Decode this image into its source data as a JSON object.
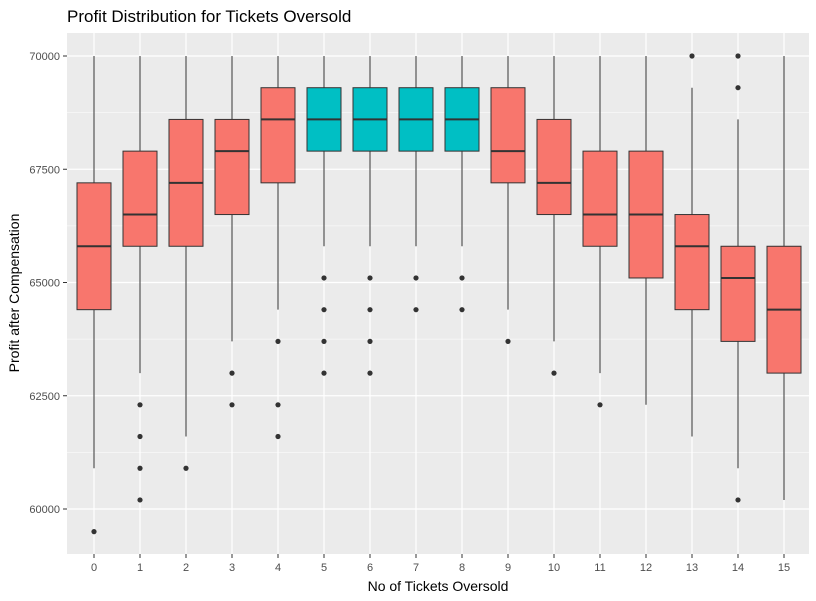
{
  "chart_data": {
    "type": "boxplot",
    "title": "Profit Distribution for Tickets Oversold",
    "xlabel": "No of Tickets Oversold",
    "ylabel": "Profit after Compensation",
    "categories": [
      "0",
      "1",
      "2",
      "3",
      "4",
      "5",
      "6",
      "7",
      "8",
      "9",
      "10",
      "11",
      "12",
      "13",
      "14",
      "15"
    ],
    "ylim": [
      59500,
      70000
    ],
    "yticks": [
      60000,
      62500,
      65000,
      67500,
      70000
    ],
    "ytick_labels": [
      "60000",
      "62500",
      "65000",
      "67500",
      "70000"
    ],
    "grid": true,
    "legend": "none",
    "colors": {
      "highlight": "#00BFC4",
      "default": "#F8766D",
      "panel": "#EBEBEB",
      "grid": "#FFFFFF",
      "ink": "#333333"
    },
    "boxes": [
      {
        "x": "0",
        "whisker_low": 60900,
        "q1": 64400,
        "median": 65800,
        "q3": 67200,
        "whisker_high": 70000,
        "outliers": [
          59500
        ],
        "group": "default"
      },
      {
        "x": "1",
        "whisker_low": 63000,
        "q1": 65800,
        "median": 66500,
        "q3": 67900,
        "whisker_high": 70000,
        "outliers": [
          62300,
          61600,
          60900,
          60200
        ],
        "group": "default"
      },
      {
        "x": "2",
        "whisker_low": 61600,
        "q1": 65800,
        "median": 67200,
        "q3": 68600,
        "whisker_high": 70000,
        "outliers": [
          60900
        ],
        "group": "default"
      },
      {
        "x": "3",
        "whisker_low": 63700,
        "q1": 66500,
        "median": 67900,
        "q3": 68600,
        "whisker_high": 70000,
        "outliers": [
          63000,
          62300
        ],
        "group": "default"
      },
      {
        "x": "4",
        "whisker_low": 64400,
        "q1": 67200,
        "median": 68600,
        "q3": 69300,
        "whisker_high": 70000,
        "outliers": [
          63700,
          62300,
          61600
        ],
        "group": "default"
      },
      {
        "x": "5",
        "whisker_low": 65800,
        "q1": 67900,
        "median": 68600,
        "q3": 69300,
        "whisker_high": 70000,
        "outliers": [
          65100,
          64400,
          63700,
          63000
        ],
        "group": "highlight"
      },
      {
        "x": "6",
        "whisker_low": 65800,
        "q1": 67900,
        "median": 68600,
        "q3": 69300,
        "whisker_high": 70000,
        "outliers": [
          65100,
          64400,
          63700,
          63000
        ],
        "group": "highlight"
      },
      {
        "x": "7",
        "whisker_low": 65800,
        "q1": 67900,
        "median": 68600,
        "q3": 69300,
        "whisker_high": 70000,
        "outliers": [
          65100,
          64400
        ],
        "group": "highlight"
      },
      {
        "x": "8",
        "whisker_low": 65800,
        "q1": 67900,
        "median": 68600,
        "q3": 69300,
        "whisker_high": 70000,
        "outliers": [
          65100,
          64400
        ],
        "group": "highlight"
      },
      {
        "x": "9",
        "whisker_low": 64400,
        "q1": 67200,
        "median": 67900,
        "q3": 69300,
        "whisker_high": 70000,
        "outliers": [
          63700
        ],
        "group": "default"
      },
      {
        "x": "10",
        "whisker_low": 63700,
        "q1": 66500,
        "median": 67200,
        "q3": 68600,
        "whisker_high": 70000,
        "outliers": [
          63000
        ],
        "group": "default"
      },
      {
        "x": "11",
        "whisker_low": 63000,
        "q1": 65800,
        "median": 66500,
        "q3": 67900,
        "whisker_high": 70000,
        "outliers": [
          62300
        ],
        "group": "default"
      },
      {
        "x": "12",
        "whisker_low": 62300,
        "q1": 65100,
        "median": 66500,
        "q3": 67900,
        "whisker_high": 70000,
        "outliers": [],
        "group": "default"
      },
      {
        "x": "13",
        "whisker_low": 61600,
        "q1": 64400,
        "median": 65800,
        "q3": 66500,
        "whisker_high": 69300,
        "outliers": [
          70000
        ],
        "group": "default"
      },
      {
        "x": "14",
        "whisker_low": 60900,
        "q1": 63700,
        "median": 65100,
        "q3": 65800,
        "whisker_high": 68600,
        "outliers": [
          70000,
          69300,
          60200
        ],
        "group": "default"
      },
      {
        "x": "15",
        "whisker_low": 60200,
        "q1": 63000,
        "median": 64400,
        "q3": 65800,
        "whisker_high": 70000,
        "outliers": [],
        "group": "default"
      }
    ]
  }
}
